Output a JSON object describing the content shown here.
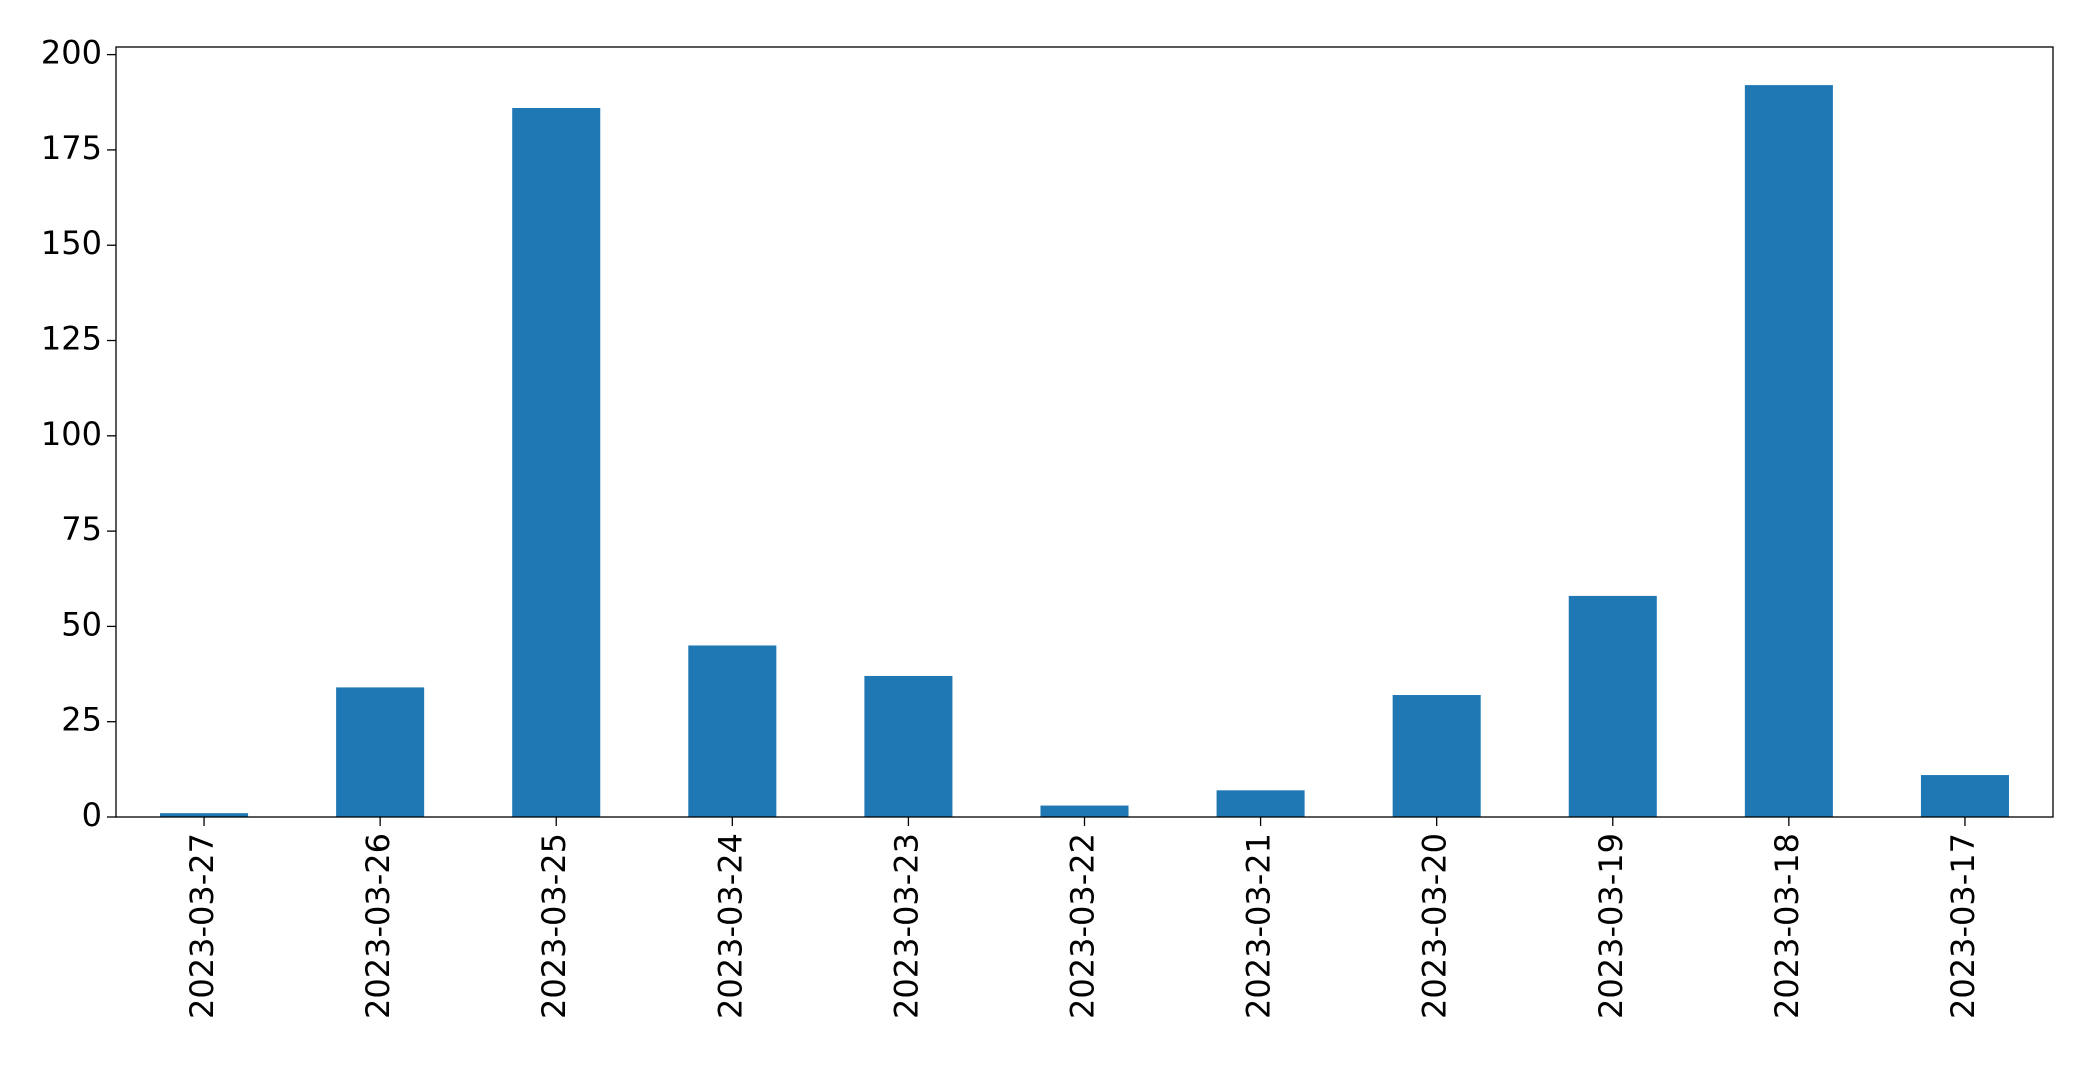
{
  "chart_data": {
    "type": "bar",
    "categories": [
      "2023-03-27",
      "2023-03-26",
      "2023-03-25",
      "2023-03-24",
      "2023-03-23",
      "2023-03-22",
      "2023-03-21",
      "2023-03-20",
      "2023-03-19",
      "2023-03-18",
      "2023-03-17"
    ],
    "values": [
      1,
      34,
      186,
      45,
      37,
      3,
      7,
      32,
      58,
      192,
      11
    ],
    "color": "#1f77b4",
    "ylim": [
      0,
      202
    ],
    "yticks": [
      0,
      25,
      50,
      75,
      100,
      125,
      150,
      175,
      200
    ],
    "grid": false
  }
}
